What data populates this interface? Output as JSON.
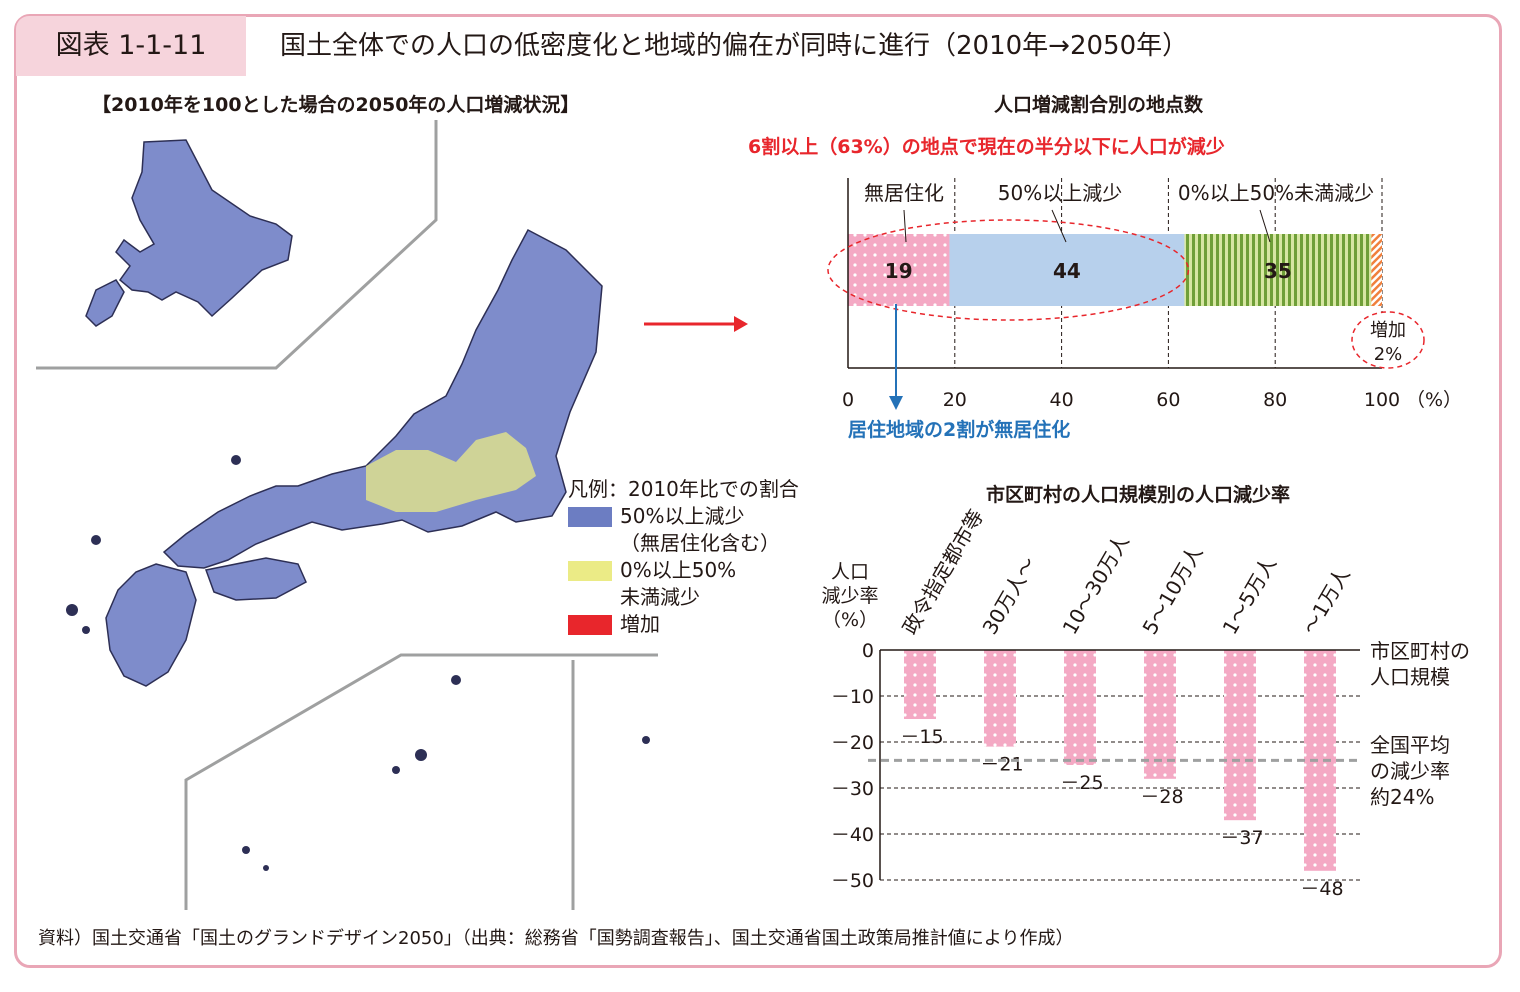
{
  "figure": {
    "label": "図表 1-1-11",
    "title": "国土全体での人口の低密度化と地域的偏在が同時に進行（2010年→2050年）",
    "source": "資料）国土交通省「国土のグランドデザイン2050」（出典：総務省「国勢調査報告」、国土交通省国土政策局推計値により作成）"
  },
  "map": {
    "title": "【2010年を100とした場合の2050年の人口増減状況】",
    "legend_title": "凡例：2010年比での割合",
    "legend": [
      {
        "label_lines": [
          "50%以上減少",
          "（無居住化含む）"
        ],
        "color": "#6c7dc2"
      },
      {
        "label_lines": [
          "0%以上50%",
          "未満減少"
        ],
        "color": "#ebeb86"
      },
      {
        "label_lines": [
          "増加"
        ],
        "color": "#e8262c"
      }
    ]
  },
  "bar_panel": {
    "title": "人口増減割合別の地点数",
    "headline": "6割以上（63%）の地点で現在の半分以下に人口が減少",
    "headline_color": "#e8262c",
    "segment_labels": [
      "無居住化",
      "50%以上減少",
      "0%以上50%未満減少"
    ],
    "increase_label_lines": [
      "増加",
      "2%"
    ],
    "note": "居住地域の2割が無居住化",
    "note_color": "#2472b8",
    "axis_unit": "（%）"
  },
  "rate_panel": {
    "title": "市区町村の人口規模別の人口減少率",
    "ylabel_lines": [
      "人口",
      "減少率",
      "（%）"
    ],
    "xlabel_lines": [
      "市区町村の",
      "人口規模"
    ],
    "avg_label_lines": [
      "全国平均",
      "の減少率",
      "約24%"
    ]
  },
  "chart_data": [
    {
      "type": "bar",
      "orientation": "horizontal",
      "stacked": true,
      "series": [
        {
          "name": "無居住化",
          "value": 19,
          "color": "#f4a9c4"
        },
        {
          "name": "50%以上減少",
          "value": 44,
          "color": "#b7d0ec"
        },
        {
          "name": "0%以上50%未満減少",
          "value": 35,
          "color": "#6f9f38"
        },
        {
          "name": "増加",
          "value": 2,
          "color": "#f0803c"
        }
      ],
      "data_labels": [
        "19",
        "44",
        "35",
        ""
      ],
      "xlim": [
        0,
        100
      ],
      "xticks": [
        0,
        20,
        40,
        60,
        80,
        100
      ],
      "xtick_labels": [
        "0",
        "20",
        "40",
        "60",
        "80",
        "100"
      ],
      "grid": "vertical-dashed"
    },
    {
      "type": "bar",
      "categories": [
        "政令指定都市等",
        "30万人～",
        "10～30万人",
        "5～10万人",
        "1～5万人",
        "～1万人"
      ],
      "values": [
        -15,
        -21,
        -25,
        -28,
        -37,
        -48
      ],
      "data_labels": [
        "－15",
        "－21",
        "－25",
        "－28",
        "－37",
        "－48"
      ],
      "ylim": [
        -50,
        0
      ],
      "yticks": [
        0,
        -10,
        -20,
        -30,
        -40,
        -50
      ],
      "ytick_labels": [
        "0",
        "－10",
        "－20",
        "－30",
        "－40",
        "－50"
      ],
      "reference_line": -24,
      "bar_color": "#f4a9c4",
      "grid": "horizontal-dashed"
    }
  ]
}
